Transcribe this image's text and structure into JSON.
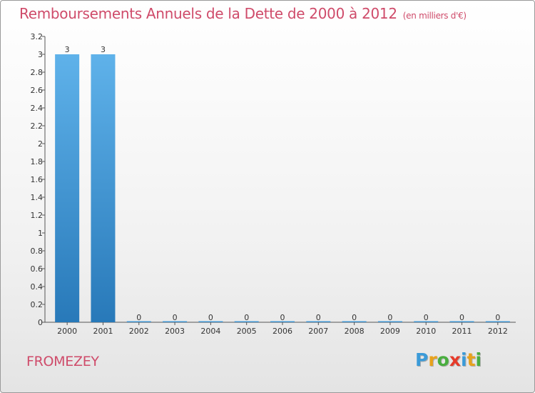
{
  "title": "Remboursements Annuels de la Dette de 2000 à 2012",
  "title_unit": "(en milliers d'€)",
  "commune": "FROMEZEY",
  "logo": {
    "letters": [
      "P",
      "r",
      "o",
      "x",
      "i",
      "t",
      "i"
    ],
    "colors": [
      "#3b9bd8",
      "#e8a21c",
      "#49ae3f",
      "#e63a2a",
      "#3b9bd8",
      "#e8a21c",
      "#49ae3f"
    ]
  },
  "colors": {
    "bar_light": "#5fb2ea",
    "bar_dark": "#2879b9",
    "title": "#cf4b6a"
  },
  "chart_data": {
    "type": "bar",
    "title": "Remboursements Annuels de la Dette de 2000 à 2012",
    "xlabel": "",
    "ylabel": "",
    "categories": [
      "2000",
      "2001",
      "2002",
      "2003",
      "2004",
      "2005",
      "2006",
      "2007",
      "2008",
      "2009",
      "2010",
      "2011",
      "2012"
    ],
    "values": [
      3,
      3,
      0,
      0,
      0,
      0,
      0,
      0,
      0,
      0,
      0,
      0,
      0
    ],
    "value_labels": [
      "3",
      "3",
      "0",
      "0",
      "0",
      "0",
      "0",
      "0",
      "0",
      "0",
      "0",
      "0",
      "0"
    ],
    "ylim": [
      0,
      3.2
    ],
    "yticks": [
      0,
      0.2,
      0.4,
      0.6,
      0.8,
      1,
      1.2,
      1.4,
      1.6,
      1.8,
      2,
      2.2,
      2.4,
      2.6,
      2.8,
      3,
      3.2
    ],
    "ytick_labels": [
      "0",
      "0.2",
      "0.4",
      "0.6",
      "0.8",
      "1",
      "1.2",
      "1.4",
      "1.6",
      "1.8",
      "2",
      "2.2",
      "2.4",
      "2.6",
      "2.8",
      "3",
      "3.2"
    ],
    "grid": false
  }
}
